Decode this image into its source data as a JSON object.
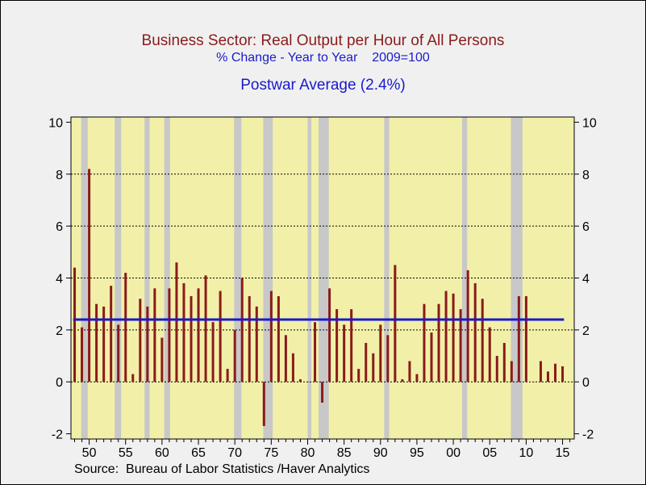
{
  "title": "Business Sector: Real Output per Hour of All Persons",
  "subtitle": "% Change - Year to Year    2009=100",
  "annotation": "Postwar Average (2.4%)",
  "source": "Source:  Bureau of Labor Statistics /Haver Analytics",
  "colors": {
    "background": "#f0f0f0",
    "plot": "#f2f0a8",
    "bar": "#8b1a1a",
    "average": "#1a1acc",
    "recession": "#c8c8c8"
  },
  "chart_data": {
    "type": "bar",
    "x": [
      1948,
      1949,
      1950,
      1951,
      1952,
      1953,
      1954,
      1955,
      1956,
      1957,
      1958,
      1959,
      1960,
      1961,
      1962,
      1963,
      1964,
      1965,
      1966,
      1967,
      1968,
      1969,
      1970,
      1971,
      1972,
      1973,
      1974,
      1975,
      1976,
      1977,
      1978,
      1979,
      1980,
      1981,
      1982,
      1983,
      1984,
      1985,
      1986,
      1987,
      1988,
      1989,
      1990,
      1991,
      1992,
      1993,
      1994,
      1995,
      1996,
      1997,
      1998,
      1999,
      2000,
      2001,
      2002,
      2003,
      2004,
      2005,
      2006,
      2007,
      2008,
      2009,
      2010,
      2011,
      2012,
      2013,
      2014,
      2015
    ],
    "values": [
      4.4,
      2.1,
      8.2,
      3.0,
      2.9,
      3.7,
      2.2,
      4.2,
      0.3,
      3.2,
      2.9,
      3.6,
      1.7,
      3.6,
      4.6,
      3.8,
      3.3,
      3.6,
      4.1,
      2.3,
      3.5,
      0.5,
      2.0,
      4.0,
      3.3,
      2.9,
      -1.7,
      3.5,
      3.3,
      1.8,
      1.1,
      0.1,
      0.0,
      2.3,
      -0.8,
      3.6,
      2.8,
      2.2,
      2.8,
      0.5,
      1.5,
      1.1,
      2.2,
      1.8,
      4.5,
      0.1,
      0.8,
      0.3,
      3.0,
      1.9,
      3.0,
      3.5,
      3.4,
      2.8,
      4.3,
      3.8,
      3.2,
      2.1,
      1.0,
      1.5,
      0.8,
      3.3,
      3.3,
      0.0,
      0.8,
      0.4,
      0.7,
      0.6
    ],
    "average": 2.4,
    "recessions": [
      [
        1948.9,
        1949.8
      ],
      [
        1953.5,
        1954.4
      ],
      [
        1957.6,
        1958.3
      ],
      [
        1960.3,
        1961.1
      ],
      [
        1969.9,
        1970.9
      ],
      [
        1973.9,
        1975.2
      ],
      [
        1980.0,
        1980.5
      ],
      [
        1981.5,
        1982.9
      ],
      [
        1990.5,
        1991.2
      ],
      [
        2001.2,
        2001.9
      ],
      [
        2007.9,
        2009.5
      ]
    ],
    "xlim": [
      1947.5,
      2016.6
    ],
    "ylim": [
      -2.2,
      10.2
    ],
    "xticks": [
      1950,
      1955,
      1960,
      1965,
      1970,
      1975,
      1980,
      1985,
      1990,
      1995,
      2000,
      2005,
      2010,
      2015
    ],
    "xtick_labels": [
      "50",
      "55",
      "60",
      "65",
      "70",
      "75",
      "80",
      "85",
      "90",
      "95",
      "00",
      "05",
      "10",
      "15"
    ],
    "yticks": [
      -2,
      0,
      2,
      4,
      6,
      8,
      10
    ],
    "ytick_labels": [
      "-2",
      "0",
      "2",
      "4",
      "6",
      "8",
      "10"
    ],
    "grid": true,
    "xlabel": "",
    "ylabel": ""
  }
}
